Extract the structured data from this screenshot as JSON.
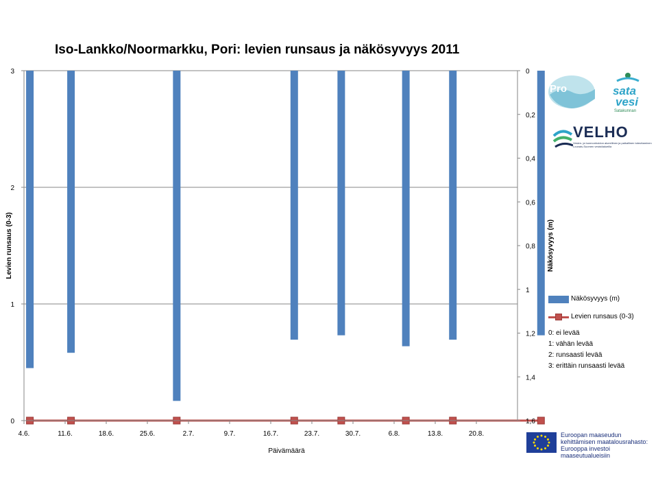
{
  "chart_data": {
    "type": "bar",
    "title": "Iso-Lankko/Noormarkku, Pori: levien runsaus ja näkösyvyys 2011",
    "xlabel": "Päivämäärä",
    "ylabel_left": "Levien runsaus (0-3)",
    "ylabel_right": "Näkösyvyys (m)",
    "y_left_ticks": [
      "0",
      "1",
      "2",
      "3"
    ],
    "y_left_lim": [
      0,
      3
    ],
    "y_right_ticks": [
      "0",
      "0,2",
      "0,4",
      "0,6",
      "0,8",
      "1",
      "1,2",
      "1,4",
      "1,6"
    ],
    "y_right_lim": [
      0,
      1.6
    ],
    "y_right_reversed": true,
    "x_tick_labels": [
      "4.6.",
      "11.6.",
      "18.6.",
      "25.6.",
      "2.7.",
      "9.7.",
      "16.7.",
      "23.7.",
      "30.7.",
      "6.8.",
      "13.8.",
      "20.8."
    ],
    "gridlines": true,
    "legend_position": "right",
    "series": [
      {
        "name": "Näkösyvyys (m)",
        "kind": "bar",
        "axis": "right",
        "color": "#4f81bd",
        "points": [
          {
            "date": "2011-06-05",
            "value": 1.36
          },
          {
            "date": "2011-06-12",
            "value": 1.29
          },
          {
            "date": "2011-06-30",
            "value": 1.51
          },
          {
            "date": "2011-07-20",
            "value": 1.23
          },
          {
            "date": "2011-07-28",
            "value": 1.21
          },
          {
            "date": "2011-08-08",
            "value": 1.26
          },
          {
            "date": "2011-08-16",
            "value": 1.23
          },
          {
            "date": "2011-08-31",
            "value": 1.21
          }
        ]
      },
      {
        "name": "Levien runsaus (0-3)",
        "kind": "line",
        "axis": "left",
        "color": "#c0504d",
        "points": [
          {
            "date": "2011-06-05",
            "value": 0
          },
          {
            "date": "2011-06-12",
            "value": 0
          },
          {
            "date": "2011-06-30",
            "value": 0
          },
          {
            "date": "2011-07-20",
            "value": 0
          },
          {
            "date": "2011-07-28",
            "value": 0
          },
          {
            "date": "2011-08-08",
            "value": 0
          },
          {
            "date": "2011-08-16",
            "value": 0
          },
          {
            "date": "2011-08-31",
            "value": 0
          }
        ]
      }
    ],
    "scale_notes": [
      "0: ei levää",
      "1: vähän levää",
      "2: runsaasti levää",
      "3: erittäin runsaasti levää"
    ]
  },
  "logos": {
    "pro_text": "Pro",
    "sata_text": "sata vesi",
    "sata_sub": "Satakunnan",
    "velho_text": "VELHO",
    "velho_sub": "Vesien- ja luonnonhoidon alueellinen ja paikallinen toteuttaminen Lounais-Suomen vesistöalueilla"
  },
  "eu": {
    "line1": "Euroopan maaseudun",
    "line2": "kehittämisen maatalousrahasto:",
    "line3": "Eurooppa investoi maaseutualueisiin"
  },
  "colors": {
    "bar": "#4f81bd",
    "line": "#c0504d",
    "grid": "#868686"
  }
}
